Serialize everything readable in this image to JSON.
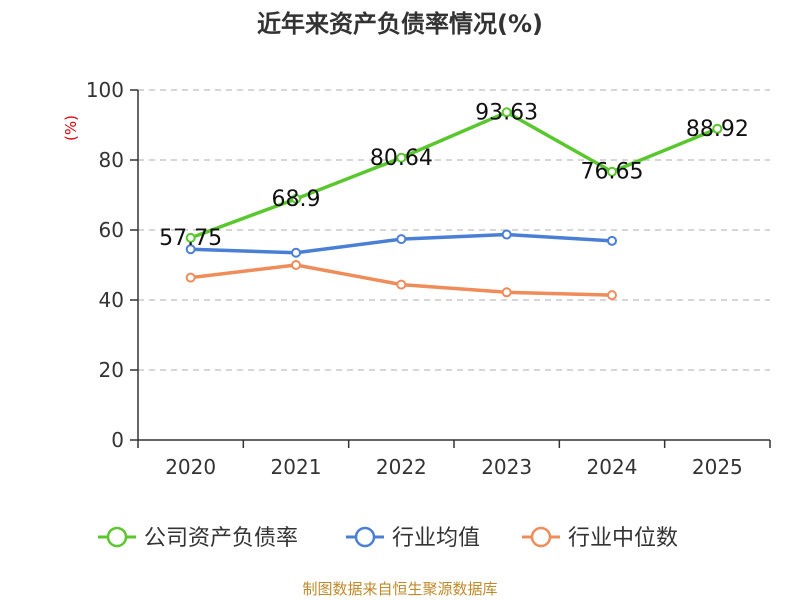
{
  "chart_data": {
    "type": "line",
    "title": "近年来资产负债率情况(%)",
    "ylabel": "(%)",
    "xlabel": "",
    "categories": [
      "2020",
      "2021",
      "2022",
      "2023",
      "2024",
      "2025"
    ],
    "ylim": [
      0,
      100
    ],
    "yticks": [
      0,
      20,
      40,
      60,
      80,
      100
    ],
    "grid": true,
    "legend_position": "bottom",
    "series": [
      {
        "name": "公司资产负债率",
        "color": "#5ac72f",
        "values": [
          57.75,
          68.9,
          80.64,
          93.63,
          76.65,
          88.92
        ],
        "labels": [
          "57.75",
          "68.9",
          "80.64",
          "93.63",
          "76.65",
          "88.92"
        ],
        "show_labels": true
      },
      {
        "name": "行业均值",
        "color": "#4a7fd6",
        "values": [
          54.5,
          53.5,
          57.4,
          58.7,
          56.9,
          null
        ],
        "show_labels": false
      },
      {
        "name": "行业中位数",
        "color": "#f08c5a",
        "values": [
          46.4,
          50.0,
          44.4,
          42.2,
          41.4,
          null
        ],
        "show_labels": false
      }
    ],
    "source": "制图数据来自恒生聚源数据库"
  }
}
